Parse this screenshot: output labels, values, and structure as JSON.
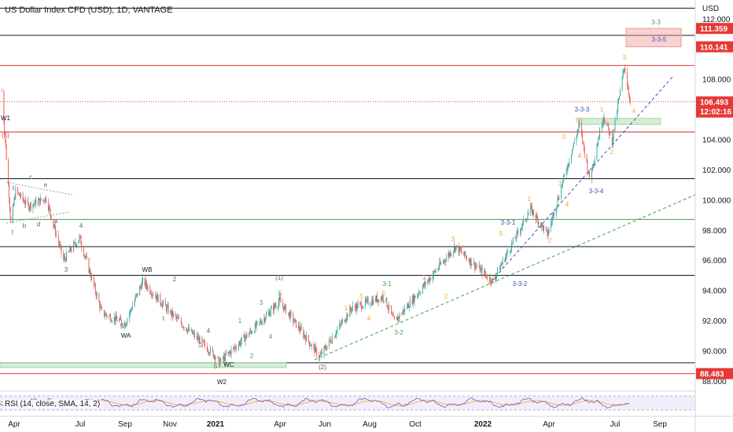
{
  "header": {
    "title": "US Dollar Index CFD (USD), 1D, VANTAGE"
  },
  "axis": {
    "currency": "USD",
    "x_labels": [
      "Apr",
      "Jul",
      "Sep",
      "Nov",
      "2021",
      "Mar",
      "Apr",
      "Jun",
      "Aug",
      "Oct",
      "2022",
      "Apr",
      "Jul",
      "Sep"
    ]
  },
  "price_tags": {
    "top_red": "111.359",
    "second_red": "110.141",
    "current_price": "106.493",
    "countdown": "12:02:16",
    "bottom_red": "88.483"
  },
  "labels": {
    "w1": "W1",
    "w2": "W2",
    "wa": "WA",
    "wb": "WB",
    "wc": "WC",
    "wave_5": "(5)",
    "wave_1": "(1)",
    "wave_2": "(2)",
    "b": "b",
    "c": "c",
    "d": "d",
    "e": "e",
    "t": "t",
    "a": "a",
    "num_1": "1",
    "num_2": "2",
    "num_3": "3",
    "num_4": "4",
    "num_5": "5",
    "wave_3_1": "3-1",
    "wave_3_2": "3-2",
    "wave_3_3": "3-3",
    "wave_331": "3-3-1",
    "wave_332": "3-3-2",
    "wave_333": "3-3-3",
    "wave_334": "3-3-4",
    "wave_335": "3-3-5"
  },
  "rsi": {
    "label": "RSI (14, close, SMA, 14, 2)"
  },
  "chart_data": {
    "type": "candlestick",
    "title": "US Dollar Index CFD (USD), 1D, VANTAGE",
    "ylabel": "USD",
    "y_ticks": [
      88.0,
      90.0,
      92.0,
      94.0,
      96.0,
      98.0,
      100.0,
      102.0,
      104.0,
      106.0,
      108.0,
      110.0,
      112.0
    ],
    "ylim": [
      87.3,
      113.2
    ],
    "x_ticks": [
      "Apr",
      "Jul",
      "Sep",
      "Nov",
      "2021",
      "Mar",
      "Apr",
      "Jun",
      "Aug",
      "Oct",
      "2022",
      "Apr",
      "Jul",
      "Sep"
    ],
    "price_path": [
      {
        "t": "2020-03-20",
        "close": 102.8
      },
      {
        "t": "2020-03-27",
        "close": 98.4
      },
      {
        "t": "2020-04-03",
        "close": 100.6
      },
      {
        "t": "2020-04-20",
        "close": 99.6
      },
      {
        "t": "2020-05-15",
        "close": 100.1
      },
      {
        "t": "2020-06-08",
        "close": 96.0
      },
      {
        "t": "2020-06-30",
        "close": 97.5
      },
      {
        "t": "2020-07-31",
        "close": 92.5
      },
      {
        "t": "2020-09-01",
        "close": 91.8
      },
      {
        "t": "2020-09-25",
        "close": 94.6
      },
      {
        "t": "2020-11-04",
        "close": 92.4
      },
      {
        "t": "2020-12-31",
        "close": 89.7
      },
      {
        "t": "2021-01-06",
        "close": 89.2
      },
      {
        "t": "2021-03-31",
        "close": 93.3
      },
      {
        "t": "2021-05-25",
        "close": 89.6
      },
      {
        "t": "2021-07-07",
        "close": 92.8
      },
      {
        "t": "2021-08-20",
        "close": 93.6
      },
      {
        "t": "2021-09-03",
        "close": 91.9
      },
      {
        "t": "2021-11-24",
        "close": 96.9
      },
      {
        "t": "2022-01-14",
        "close": 94.6
      },
      {
        "t": "2022-03-07",
        "close": 99.4
      },
      {
        "t": "2022-03-30",
        "close": 97.7
      },
      {
        "t": "2022-05-13",
        "close": 105.0
      },
      {
        "t": "2022-05-27",
        "close": 101.4
      },
      {
        "t": "2022-06-15",
        "close": 105.6
      },
      {
        "t": "2022-06-27",
        "close": 103.9
      },
      {
        "t": "2022-07-14",
        "close": 108.9
      },
      {
        "t": "2022-07-22",
        "close": 106.5
      }
    ],
    "horizontal_lines": [
      {
        "price": 112.7,
        "color": "#131722"
      },
      {
        "price": 110.9,
        "color": "#131722"
      },
      {
        "price": 108.9,
        "color": "#e53935"
      },
      {
        "price": 106.493,
        "color": "#e53935",
        "style": "dotted"
      },
      {
        "price": 104.5,
        "color": "#c62828"
      },
      {
        "price": 101.4,
        "color": "#131722"
      },
      {
        "price": 98.7,
        "color": "#43a047"
      },
      {
        "price": 96.9,
        "color": "#131722"
      },
      {
        "price": 95.0,
        "color": "#131722"
      },
      {
        "price": 89.2,
        "color": "#131722"
      },
      {
        "price": 88.483,
        "color": "#e53935"
      }
    ],
    "zones": [
      {
        "from": 110.141,
        "to": 111.359,
        "color": "#ef9a9a"
      },
      {
        "from": 105.0,
        "to": 105.4,
        "color": "#a5d6a7"
      },
      {
        "from": 88.9,
        "to": 89.2,
        "color": "#a5d6a7"
      }
    ],
    "rsi": {
      "period": 14,
      "source": "close",
      "ma": "SMA",
      "ma_length": 14,
      "bands": [
        30,
        70
      ]
    }
  }
}
